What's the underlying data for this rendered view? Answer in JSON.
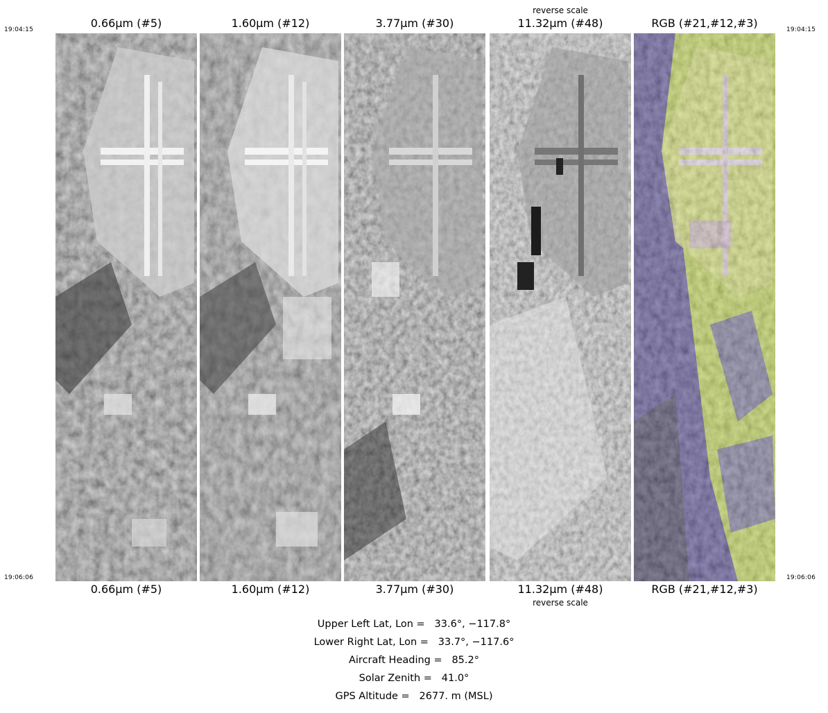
{
  "times": {
    "start": "19:04:15",
    "end": "19:06:06"
  },
  "panels": [
    {
      "label": "0.66µm (#5)",
      "sub": ""
    },
    {
      "label": "1.60µm (#12)",
      "sub": ""
    },
    {
      "label": "3.77µm (#30)",
      "sub": ""
    },
    {
      "label": "11.32µm (#48)",
      "sub": "reverse scale"
    },
    {
      "label": "RGB (#21,#12,#3)",
      "sub": ""
    }
  ],
  "info": [
    "Upper Left Lat, Lon =   33.6°, −117.8°",
    "Lower Right Lat, Lon =   33.7°, −117.6°",
    "Aircraft Heading =   85.2°",
    "Solar Zenith =   41.0°",
    "GPS Altitude =   2677. m (MSL)"
  ],
  "colors": {
    "rgb_vegetation": "#c6d84a",
    "rgb_urban": "#4a3f8a",
    "rgb_shadow": "#2e2a3a"
  }
}
